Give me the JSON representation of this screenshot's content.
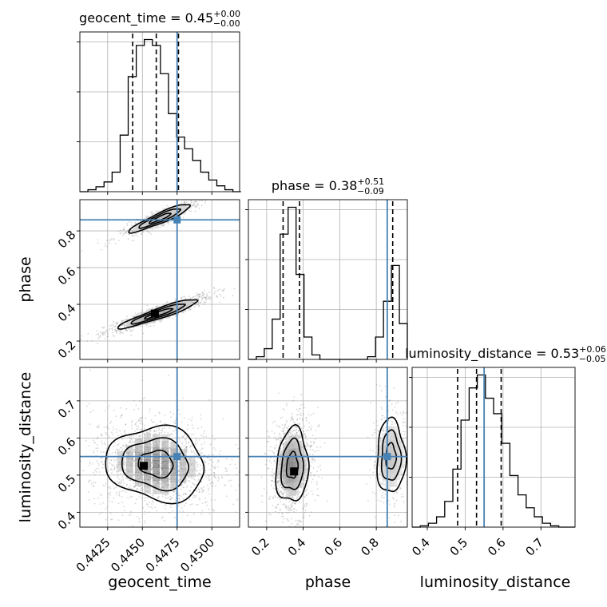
{
  "chart_data": {
    "type": "corner",
    "parameters": [
      "geocent_time",
      "phase",
      "luminosity_distance"
    ],
    "truths": {
      "geocent_time": 0.4475,
      "phase": 0.86,
      "luminosity_distance": 0.55
    },
    "truth_color": "#4682b4",
    "contour_color": "#000000",
    "grid": true,
    "ranges": {
      "geocent_time": [
        0.4405,
        0.452
      ],
      "phase": [
        0.1,
        0.97
      ],
      "luminosity_distance": [
        0.36,
        0.79
      ]
    },
    "ticks": {
      "geocent_time": [
        0.4425,
        0.445,
        0.4475,
        0.45
      ],
      "phase": [
        0.2,
        0.4,
        0.6,
        0.8
      ],
      "luminosity_distance": [
        0.4,
        0.5,
        0.6,
        0.7
      ]
    },
    "tick_labels": {
      "geocent_time": [
        "0.4425",
        "0.4450",
        "0.4475",
        "0.4500"
      ],
      "phase": [
        "0.2",
        "0.4",
        "0.6",
        "0.8"
      ],
      "luminosity_distance": [
        "0.4",
        "0.5",
        "0.6",
        "0.7"
      ]
    },
    "marginals": [
      {
        "parameter": "geocent_time",
        "title_label": "geocent_time = 0.45",
        "title_sup": "+0.00",
        "title_sub": "−0.00",
        "quantiles": [
          0.4443,
          0.446,
          0.4476
        ],
        "bin_edges": [
          0.4405,
          0.44108,
          0.44166,
          0.44224,
          0.44282,
          0.4434,
          0.44398,
          0.44456,
          0.44514,
          0.44572,
          0.4463,
          0.44688,
          0.44746,
          0.44804,
          0.44862,
          0.4492,
          0.44978,
          0.45036,
          0.45094,
          0.45152,
          0.4521
        ],
        "counts": [
          0,
          2,
          5,
          10,
          20,
          58,
          118,
          150,
          156,
          150,
          121,
          80,
          56,
          44,
          32,
          20,
          12,
          6,
          2,
          0
        ]
      },
      {
        "parameter": "phase",
        "title_label": "phase = 0.38",
        "title_sup": "+0.51",
        "title_sub": "−0.09",
        "quantiles": [
          0.29,
          0.38,
          0.89
        ],
        "bin_edges": [
          0.1,
          0.1435,
          0.187,
          0.2305,
          0.274,
          0.3175,
          0.361,
          0.4045,
          0.448,
          0.4915,
          0.535,
          0.5785,
          0.622,
          0.6655,
          0.709,
          0.7525,
          0.796,
          0.8395,
          0.883,
          0.9265,
          0.97
        ],
        "counts": [
          0,
          3,
          12,
          45,
          140,
          170,
          95,
          25,
          5,
          0,
          0,
          0,
          0,
          0,
          0,
          3,
          25,
          65,
          105,
          40
        ]
      },
      {
        "parameter": "luminosity_distance",
        "title_label": "luminosity_distance = 0.53",
        "title_sup": "+0.06",
        "title_sub": "−0.05",
        "quantiles": [
          0.48,
          0.53,
          0.595
        ],
        "bin_edges": [
          0.36,
          0.3815,
          0.403,
          0.4245,
          0.446,
          0.4675,
          0.489,
          0.5105,
          0.532,
          0.5535,
          0.575,
          0.5965,
          0.618,
          0.6395,
          0.661,
          0.6825,
          0.704,
          0.7255,
          0.747,
          0.7685,
          0.79
        ],
        "counts": [
          0,
          1,
          3,
          8,
          20,
          45,
          83,
          108,
          118,
          100,
          88,
          65,
          40,
          25,
          15,
          8,
          3,
          1,
          0,
          0
        ]
      }
    ],
    "contour_panels": [
      {
        "x": "geocent_time",
        "y": "phase",
        "blobs": [
          {
            "cx": 0.4462,
            "cy": 0.35,
            "sx": 0.0013,
            "sy": 0.036,
            "rho": 0.93,
            "weight": 0.62
          },
          {
            "cx": 0.4463,
            "cy": 0.87,
            "sx": 0.001,
            "sy": 0.035,
            "rho": 0.92,
            "weight": 0.38
          }
        ],
        "peaks": [
          {
            "x": 0.4459,
            "y": 0.35
          }
        ]
      },
      {
        "x": "geocent_time",
        "y": "luminosity_distance",
        "blobs": [
          {
            "cx": 0.446,
            "cy": 0.53,
            "sx": 0.0016,
            "sy": 0.045,
            "rho": -0.1,
            "weight": 1.0
          }
        ],
        "peaks": [
          {
            "x": 0.4451,
            "y": 0.525
          }
        ]
      },
      {
        "x": "phase",
        "y": "luminosity_distance",
        "blobs": [
          {
            "cx": 0.34,
            "cy": 0.525,
            "sx": 0.04,
            "sy": 0.045,
            "rho": 0.1,
            "weight": 0.72
          },
          {
            "cx": 0.88,
            "cy": 0.55,
            "sx": 0.035,
            "sy": 0.045,
            "rho": 0.0,
            "weight": 0.28
          }
        ],
        "peaks": [
          {
            "x": 0.35,
            "y": 0.51
          }
        ]
      }
    ],
    "axis_labels": {
      "x": [
        "geocent_time",
        "phase",
        "luminosity_distance"
      ],
      "y": [
        "phase",
        "luminosity_distance"
      ]
    }
  }
}
